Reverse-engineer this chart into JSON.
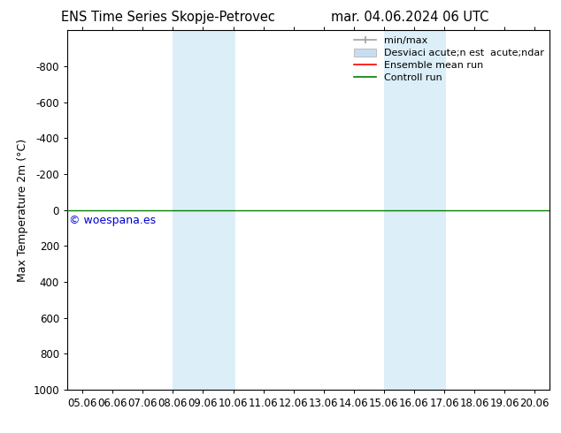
{
  "title_left": "ENS Time Series Skopje-Petrovec",
  "title_right": "mar. 04.06.2024 06 UTC",
  "ylabel": "Max Temperature 2m (°C)",
  "watermark": "© woespana.es",
  "xlim_start": 4.5,
  "xlim_end": 20.5,
  "ylim_bottom": 1000,
  "ylim_top": -1000,
  "yticks": [
    -800,
    -600,
    -400,
    -200,
    0,
    200,
    400,
    600,
    800,
    1000
  ],
  "ytick_labels": [
    "-800",
    "-600",
    "-400",
    "-200",
    "0",
    "200",
    "400",
    "600",
    "800",
    "1000"
  ],
  "xtick_labels": [
    "05.06",
    "06.06",
    "07.06",
    "08.06",
    "09.06",
    "10.06",
    "11.06",
    "12.06",
    "13.06",
    "14.06",
    "15.06",
    "16.06",
    "17.06",
    "18.06",
    "19.06",
    "20.06"
  ],
  "xtick_positions": [
    5,
    6,
    7,
    8,
    9,
    10,
    11,
    12,
    13,
    14,
    15,
    16,
    17,
    18,
    19,
    20
  ],
  "shaded_regions": [
    {
      "xmin": 8.0,
      "xmax": 10.06,
      "color": "#dceef8"
    },
    {
      "xmin": 15.0,
      "xmax": 17.06,
      "color": "#dceef8"
    }
  ],
  "control_run_y": 0,
  "control_run_color": "#008000",
  "ensemble_mean_color": "#ff0000",
  "minmax_color": "#a0a0a0",
  "std_dev_color": "#c8ddf0",
  "background_color": "#ffffff",
  "legend_label_minmax": "min/max",
  "legend_label_std": "Desviaci acute;n est  acute;ndar",
  "legend_label_ensemble": "Ensemble mean run",
  "legend_label_control": "Controll run",
  "title_fontsize": 10.5,
  "tick_fontsize": 8.5,
  "ylabel_fontsize": 9,
  "watermark_fontsize": 9,
  "legend_fontsize": 8
}
